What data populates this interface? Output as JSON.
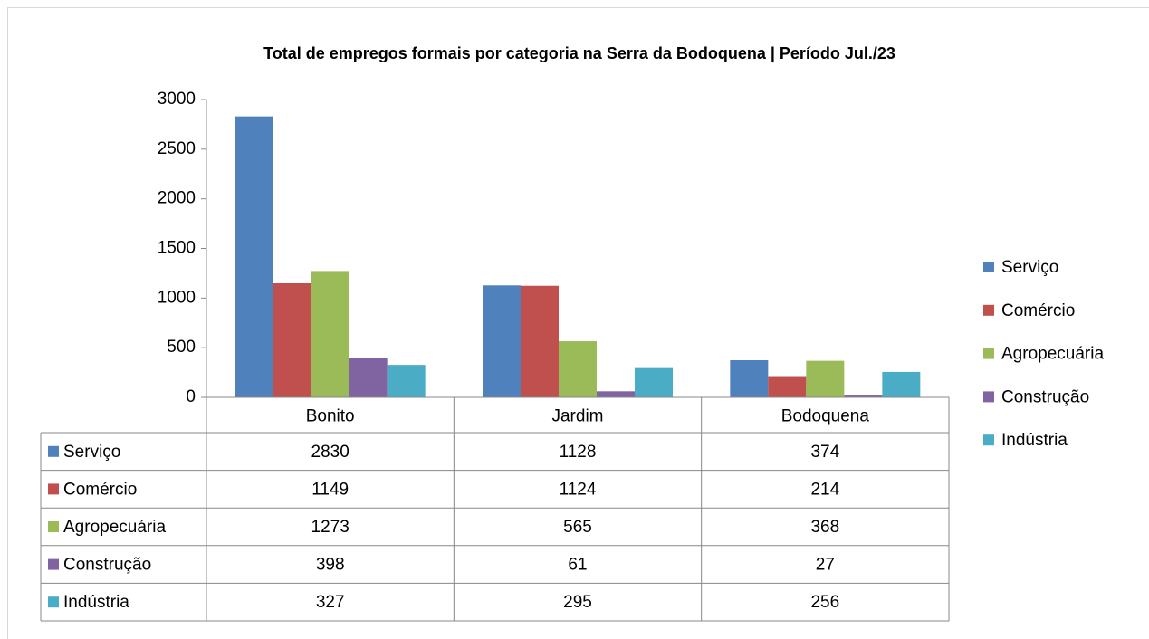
{
  "chart_data": {
    "type": "bar",
    "title": "Total de empregos formais por categoria na Serra da Bodoquena  | Período  Jul./23",
    "categories": [
      "Bonito",
      "Jardim",
      "Bodoquena"
    ],
    "series": [
      {
        "name": "Serviço",
        "color": "#4f81bd",
        "values": [
          2830,
          1128,
          374
        ]
      },
      {
        "name": "Comércio",
        "color": "#c0504d",
        "values": [
          1149,
          1124,
          214
        ]
      },
      {
        "name": "Agropecuária",
        "color": "#9bbb59",
        "values": [
          1273,
          565,
          368
        ]
      },
      {
        "name": "Construção",
        "color": "#8064a2",
        "values": [
          398,
          61,
          27
        ]
      },
      {
        "name": "Indústria",
        "color": "#4bacc6",
        "values": [
          327,
          295,
          256
        ]
      }
    ],
    "ylim": [
      0,
      3000
    ],
    "yticks": [
      0,
      500,
      1000,
      1500,
      2000,
      2500,
      3000
    ],
    "legend": "right",
    "data_table": true
  }
}
